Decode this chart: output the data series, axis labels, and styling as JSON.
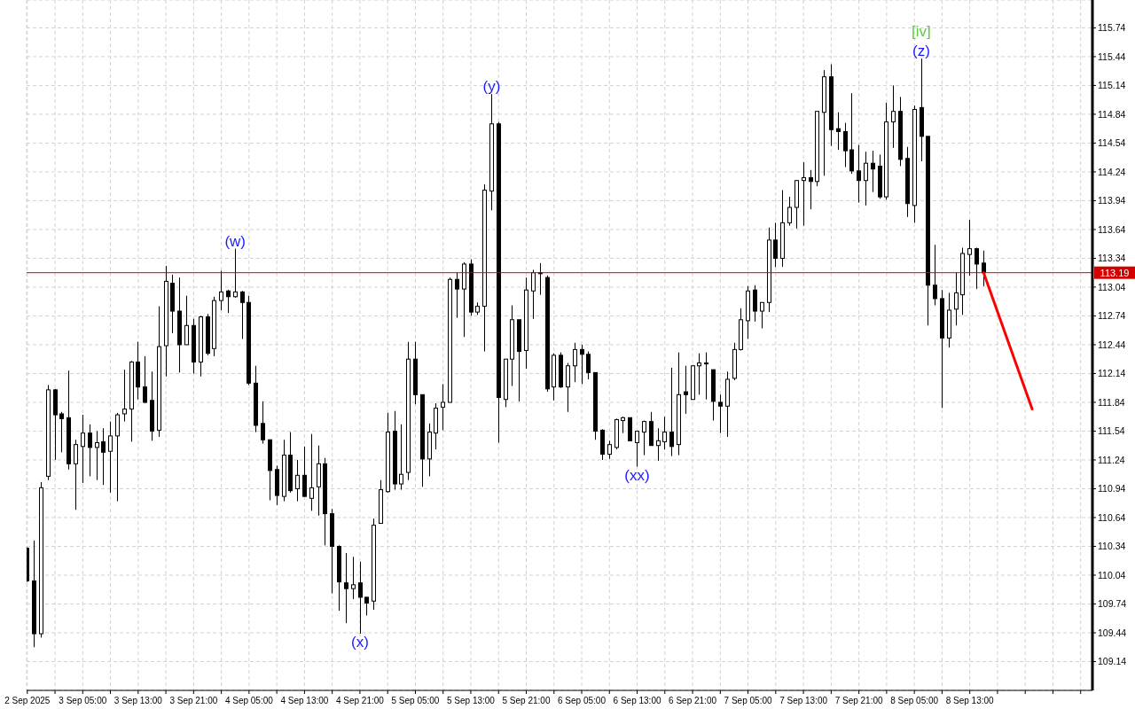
{
  "chart_data": {
    "type": "candlestick",
    "xlim": [
      "2025-09-02T20:54",
      "2025-09-09T06:42"
    ],
    "ylim": [
      108.84,
      116.03
    ],
    "xticks": [
      {
        "value": "2025-09-02T21:00",
        "label": "2 Sep 2025"
      },
      {
        "value": "2025-09-03T01:00",
        "label": null
      },
      {
        "value": "2025-09-03T05:00",
        "label": "3 Sep 05:00"
      },
      {
        "value": "2025-09-03T09:00",
        "label": null
      },
      {
        "value": "2025-09-03T13:00",
        "label": "3 Sep 13:00"
      },
      {
        "value": "2025-09-03T17:00",
        "label": null
      },
      {
        "value": "2025-09-03T21:00",
        "label": "3 Sep 21:00"
      },
      {
        "value": "2025-09-04T01:00",
        "label": null
      },
      {
        "value": "2025-09-04T05:00",
        "label": "4 Sep 05:00"
      },
      {
        "value": "2025-09-04T09:00",
        "label": null
      },
      {
        "value": "2025-09-04T13:00",
        "label": "4 Sep 13:00"
      },
      {
        "value": "2025-09-04T17:00",
        "label": null
      },
      {
        "value": "2025-09-04T21:00",
        "label": "4 Sep 21:00"
      },
      {
        "value": "2025-09-05T01:00",
        "label": null
      },
      {
        "value": "2025-09-05T05:00",
        "label": "5 Sep 05:00"
      },
      {
        "value": "2025-09-05T09:00",
        "label": null
      },
      {
        "value": "2025-09-05T13:00",
        "label": "5 Sep 13:00"
      },
      {
        "value": "2025-09-05T17:00",
        "label": null
      },
      {
        "value": "2025-09-05T21:00",
        "label": "5 Sep 21:00"
      },
      {
        "value": "2025-09-06T01:00",
        "label": null
      },
      {
        "value": "2025-09-06T05:00",
        "label": "6 Sep 05:00"
      },
      {
        "value": "2025-09-06T09:00",
        "label": null
      },
      {
        "value": "2025-09-06T13:00",
        "label": "6 Sep 13:00"
      },
      {
        "value": "2025-09-06T17:00",
        "label": null
      },
      {
        "value": "2025-09-06T21:00",
        "label": "6 Sep 21:00"
      },
      {
        "value": "2025-09-07T01:00",
        "label": null
      },
      {
        "value": "2025-09-07T05:00",
        "label": "7 Sep 05:00"
      },
      {
        "value": "2025-09-07T09:00",
        "label": null
      },
      {
        "value": "2025-09-07T13:00",
        "label": "7 Sep 13:00"
      },
      {
        "value": "2025-09-07T17:00",
        "label": null
      },
      {
        "value": "2025-09-07T21:00",
        "label": "7 Sep 21:00"
      },
      {
        "value": "2025-09-08T01:00",
        "label": null
      },
      {
        "value": "2025-09-08T05:00",
        "label": "8 Sep 05:00"
      },
      {
        "value": "2025-09-08T09:00",
        "label": null
      },
      {
        "value": "2025-09-08T13:00",
        "label": "8 Sep 13:00"
      },
      {
        "value": "2025-09-08T17:00",
        "label": null
      },
      {
        "value": "2025-09-08T21:00",
        "label": null
      },
      {
        "value": "2025-09-09T01:00",
        "label": null
      },
      {
        "value": "2025-09-09T05:00",
        "label": null
      }
    ],
    "yticks": [
      109.14,
      109.44,
      109.74,
      110.04,
      110.34,
      110.64,
      110.94,
      111.24,
      111.54,
      111.84,
      112.14,
      112.44,
      112.74,
      113.04,
      113.34,
      113.64,
      113.94,
      114.24,
      114.54,
      114.84,
      115.14,
      115.44,
      115.74
    ],
    "grid": true,
    "ref_lines": [
      {
        "axis": "y",
        "value": 113.19,
        "label": "113.19",
        "color": "#d40000"
      }
    ],
    "annotations": [
      {
        "text": "(w)",
        "x": "2025-09-04T03:00",
        "y": 113.44
      },
      {
        "text": "(x)",
        "x": "2025-09-04T21:00",
        "y": 109.43
      },
      {
        "text": "(y)",
        "x": "2025-09-05T16:00",
        "y": 115.05
      },
      {
        "text": "(xx)",
        "x": "2025-09-06T13:00",
        "y": 111.17
      },
      {
        "text": "(z)",
        "x": "2025-09-08T06:00",
        "y": 115.42
      },
      {
        "text": "[iv]",
        "x": "2025-09-08T06:00",
        "y": 115.42
      }
    ],
    "series": [
      {
        "color": "#000000",
        "x": [
          "2025-09-02T21:00",
          "2025-09-02T22:00",
          "2025-09-02T23:00",
          "2025-09-03T00:00",
          "2025-09-03T01:00",
          "2025-09-03T02:00",
          "2025-09-03T03:00",
          "2025-09-03T04:00",
          "2025-09-03T05:00",
          "2025-09-03T06:00",
          "2025-09-03T07:00",
          "2025-09-03T08:00",
          "2025-09-03T09:00",
          "2025-09-03T10:00",
          "2025-09-03T11:00",
          "2025-09-03T12:00",
          "2025-09-03T13:00",
          "2025-09-03T14:00",
          "2025-09-03T15:00",
          "2025-09-03T16:00",
          "2025-09-03T17:00",
          "2025-09-03T18:00",
          "2025-09-03T19:00",
          "2025-09-03T20:00",
          "2025-09-03T21:00",
          "2025-09-03T22:00",
          "2025-09-03T23:00",
          "2025-09-04T00:00",
          "2025-09-04T01:00",
          "2025-09-04T02:00",
          "2025-09-04T03:00",
          "2025-09-04T04:00",
          "2025-09-04T05:00",
          "2025-09-04T06:00",
          "2025-09-04T07:00",
          "2025-09-04T08:00",
          "2025-09-04T09:00",
          "2025-09-04T10:00",
          "2025-09-04T11:00",
          "2025-09-04T12:00",
          "2025-09-04T13:00",
          "2025-09-04T14:00",
          "2025-09-04T15:00",
          "2025-09-04T16:00",
          "2025-09-04T17:00",
          "2025-09-04T18:00",
          "2025-09-04T19:00",
          "2025-09-04T20:00",
          "2025-09-04T21:00",
          "2025-09-04T22:00",
          "2025-09-04T23:00",
          "2025-09-05T00:00",
          "2025-09-05T01:00",
          "2025-09-05T02:00",
          "2025-09-05T03:00",
          "2025-09-05T04:00",
          "2025-09-05T05:00",
          "2025-09-05T06:00",
          "2025-09-05T07:00",
          "2025-09-05T08:00",
          "2025-09-05T09:00",
          "2025-09-05T10:00",
          "2025-09-05T11:00",
          "2025-09-05T12:00",
          "2025-09-05T13:00",
          "2025-09-05T14:00",
          "2025-09-05T15:00",
          "2025-09-05T16:00",
          "2025-09-05T17:00",
          "2025-09-05T18:00",
          "2025-09-05T19:00",
          "2025-09-05T20:00",
          "2025-09-05T21:00",
          "2025-09-05T22:00",
          "2025-09-05T23:00",
          "2025-09-06T00:00",
          "2025-09-06T01:00",
          "2025-09-06T02:00",
          "2025-09-06T03:00",
          "2025-09-06T04:00",
          "2025-09-06T05:00",
          "2025-09-06T06:00",
          "2025-09-06T07:00",
          "2025-09-06T08:00",
          "2025-09-06T09:00",
          "2025-09-06T10:00",
          "2025-09-06T11:00",
          "2025-09-06T12:00",
          "2025-09-06T13:00",
          "2025-09-06T14:00",
          "2025-09-06T15:00",
          "2025-09-06T16:00",
          "2025-09-06T17:00",
          "2025-09-06T18:00",
          "2025-09-06T19:00",
          "2025-09-06T20:00",
          "2025-09-06T21:00",
          "2025-09-06T22:00",
          "2025-09-06T23:00",
          "2025-09-07T00:00",
          "2025-09-07T01:00",
          "2025-09-07T02:00",
          "2025-09-07T03:00",
          "2025-09-07T04:00",
          "2025-09-07T05:00",
          "2025-09-07T06:00",
          "2025-09-07T07:00",
          "2025-09-07T08:00",
          "2025-09-07T09:00",
          "2025-09-07T10:00",
          "2025-09-07T11:00",
          "2025-09-07T12:00",
          "2025-09-07T13:00",
          "2025-09-07T14:00",
          "2025-09-07T15:00",
          "2025-09-07T16:00",
          "2025-09-07T17:00",
          "2025-09-07T18:00",
          "2025-09-07T19:00",
          "2025-09-07T20:00",
          "2025-09-07T21:00",
          "2025-09-07T22:00",
          "2025-09-07T23:00",
          "2025-09-08T00:00",
          "2025-09-08T01:00",
          "2025-09-08T02:00",
          "2025-09-08T03:00",
          "2025-09-08T04:00",
          "2025-09-08T05:00",
          "2025-09-08T06:00",
          "2025-09-08T07:00",
          "2025-09-08T08:00",
          "2025-09-08T09:00",
          "2025-09-08T10:00",
          "2025-09-08T11:00",
          "2025-09-08T12:00",
          "2025-09-08T13:00",
          "2025-09-08T14:00",
          "2025-09-08T15:00"
        ],
        "ohlc": [
          [
            110.32,
            110.33,
            109.97,
            109.98
          ],
          [
            109.98,
            110.4,
            109.29,
            109.43
          ],
          [
            109.43,
            111.01,
            109.39,
            110.95
          ],
          [
            111.07,
            112.02,
            111.03,
            111.97
          ],
          [
            111.97,
            111.98,
            111.24,
            111.71
          ],
          [
            111.72,
            111.74,
            111.32,
            111.67
          ],
          [
            111.68,
            112.17,
            111.14,
            111.2
          ],
          [
            111.2,
            111.45,
            110.72,
            111.4
          ],
          [
            111.38,
            111.71,
            111.0,
            111.52
          ],
          [
            111.52,
            111.61,
            111.07,
            111.37
          ],
          [
            111.37,
            111.54,
            111.03,
            111.42
          ],
          [
            111.43,
            111.57,
            110.98,
            111.32
          ],
          [
            111.33,
            111.64,
            110.9,
            111.49
          ],
          [
            111.49,
            111.73,
            110.81,
            111.71
          ],
          [
            111.72,
            112.18,
            111.64,
            111.77
          ],
          [
            111.77,
            112.27,
            111.43,
            112.26
          ],
          [
            112.26,
            112.47,
            111.87,
            112.0
          ],
          [
            112.0,
            112.32,
            111.83,
            111.84
          ],
          [
            111.86,
            112.16,
            111.44,
            111.54
          ],
          [
            111.55,
            112.84,
            111.48,
            112.42
          ],
          [
            112.43,
            113.26,
            112.11,
            113.1
          ],
          [
            113.08,
            113.17,
            112.56,
            112.79
          ],
          [
            112.79,
            113.14,
            112.15,
            112.44
          ],
          [
            112.44,
            112.95,
            112.44,
            112.64
          ],
          [
            112.64,
            112.71,
            112.14,
            112.26
          ],
          [
            112.26,
            112.74,
            112.11,
            112.73
          ],
          [
            112.73,
            112.76,
            112.33,
            112.35
          ],
          [
            112.4,
            112.94,
            112.32,
            112.9
          ],
          [
            112.9,
            113.21,
            112.8,
            112.99
          ],
          [
            113.0,
            113.01,
            112.77,
            112.94
          ],
          [
            112.94,
            113.44,
            112.93,
            112.99
          ],
          [
            112.99,
            113.0,
            112.5,
            112.88
          ],
          [
            112.88,
            112.95,
            112.02,
            112.04
          ],
          [
            112.04,
            112.22,
            111.53,
            111.6
          ],
          [
            111.62,
            111.85,
            111.41,
            111.45
          ],
          [
            111.45,
            111.45,
            110.82,
            111.13
          ],
          [
            111.14,
            111.18,
            110.77,
            110.87
          ],
          [
            110.86,
            111.45,
            110.81,
            111.29
          ],
          [
            111.29,
            111.53,
            110.9,
            110.92
          ],
          [
            110.94,
            111.24,
            110.81,
            111.08
          ],
          [
            111.08,
            111.38,
            110.86,
            110.86
          ],
          [
            110.84,
            111.51,
            110.71,
            110.95
          ],
          [
            110.96,
            111.39,
            110.66,
            111.2
          ],
          [
            111.2,
            111.26,
            110.35,
            110.68
          ],
          [
            110.68,
            110.73,
            109.85,
            110.34
          ],
          [
            110.34,
            110.35,
            109.67,
            109.97
          ],
          [
            109.96,
            110.27,
            109.54,
            109.9
          ],
          [
            109.9,
            110.23,
            109.79,
            109.94
          ],
          [
            109.96,
            110.18,
            109.43,
            109.81
          ],
          [
            109.81,
            109.81,
            109.62,
            109.75
          ],
          [
            109.77,
            110.63,
            109.68,
            110.56
          ],
          [
            110.58,
            111.03,
            110.58,
            110.93
          ],
          [
            110.91,
            111.73,
            110.9,
            111.53
          ],
          [
            111.54,
            111.75,
            110.93,
            110.99
          ],
          [
            110.99,
            111.61,
            110.93,
            111.09
          ],
          [
            111.11,
            112.47,
            111.03,
            112.29
          ],
          [
            112.29,
            112.47,
            111.82,
            111.92
          ],
          [
            111.92,
            111.92,
            110.96,
            111.25
          ],
          [
            111.25,
            111.62,
            111.07,
            111.53
          ],
          [
            111.52,
            111.83,
            111.35,
            111.78
          ],
          [
            111.79,
            112.03,
            111.55,
            111.84
          ],
          [
            111.84,
            113.14,
            111.84,
            113.12
          ],
          [
            113.12,
            113.19,
            112.72,
            113.02
          ],
          [
            113.02,
            113.3,
            112.52,
            113.28
          ],
          [
            113.28,
            113.33,
            112.74,
            112.78
          ],
          [
            112.78,
            112.88,
            112.75,
            112.84
          ],
          [
            112.84,
            114.11,
            112.37,
            114.05
          ],
          [
            114.04,
            115.05,
            113.84,
            114.74
          ],
          [
            114.74,
            114.76,
            111.42,
            111.89
          ],
          [
            111.87,
            112.29,
            111.79,
            112.29
          ],
          [
            112.29,
            112.85,
            112.01,
            112.7
          ],
          [
            112.7,
            112.7,
            111.85,
            112.37
          ],
          [
            112.38,
            113.14,
            112.19,
            113.01
          ],
          [
            113.0,
            113.22,
            112.71,
            113.19
          ],
          [
            113.19,
            113.29,
            112.96,
            113.18
          ],
          [
            113.14,
            113.16,
            111.95,
            111.98
          ],
          [
            112.0,
            112.35,
            111.86,
            112.33
          ],
          [
            112.33,
            112.36,
            111.99,
            112.0
          ],
          [
            112.0,
            112.25,
            111.74,
            112.22
          ],
          [
            112.22,
            112.46,
            112.05,
            112.39
          ],
          [
            112.39,
            112.44,
            112.03,
            112.34
          ],
          [
            112.34,
            112.37,
            112.08,
            112.15
          ],
          [
            112.15,
            112.15,
            111.45,
            111.54
          ],
          [
            111.55,
            111.56,
            111.24,
            111.3
          ],
          [
            111.3,
            111.44,
            111.25,
            111.4
          ],
          [
            111.37,
            111.67,
            111.35,
            111.66
          ],
          [
            111.65,
            111.69,
            111.52,
            111.68
          ],
          [
            111.68,
            111.68,
            111.44,
            111.44
          ],
          [
            111.42,
            111.54,
            111.17,
            111.54
          ],
          [
            111.53,
            111.65,
            111.29,
            111.64
          ],
          [
            111.64,
            111.74,
            111.39,
            111.39
          ],
          [
            111.39,
            111.57,
            111.23,
            111.44
          ],
          [
            111.43,
            111.69,
            111.35,
            111.53
          ],
          [
            111.53,
            112.2,
            111.28,
            111.38
          ],
          [
            111.4,
            112.36,
            111.29,
            111.92
          ],
          [
            111.95,
            112.22,
            111.72,
            111.92
          ],
          [
            111.87,
            112.23,
            111.87,
            112.22
          ],
          [
            112.22,
            112.35,
            111.92,
            112.25
          ],
          [
            112.25,
            112.36,
            111.87,
            112.24
          ],
          [
            112.18,
            112.18,
            111.65,
            111.85
          ],
          [
            111.84,
            111.92,
            111.52,
            111.8
          ],
          [
            111.8,
            112.16,
            111.48,
            112.08
          ],
          [
            112.09,
            112.46,
            112.07,
            112.39
          ],
          [
            112.39,
            112.82,
            112.38,
            112.7
          ],
          [
            112.69,
            113.05,
            112.5,
            113.0
          ],
          [
            113.01,
            113.06,
            112.68,
            112.79
          ],
          [
            112.79,
            112.88,
            112.61,
            112.88
          ],
          [
            112.88,
            113.66,
            112.78,
            113.53
          ],
          [
            113.53,
            113.71,
            113.25,
            113.34
          ],
          [
            113.34,
            114.05,
            113.25,
            113.71
          ],
          [
            113.71,
            113.98,
            113.68,
            113.87
          ],
          [
            113.87,
            114.15,
            113.65,
            114.15
          ],
          [
            114.15,
            114.34,
            113.68,
            114.18
          ],
          [
            114.18,
            114.26,
            113.85,
            114.14
          ],
          [
            114.14,
            114.87,
            114.09,
            114.87
          ],
          [
            114.86,
            115.3,
            114.2,
            115.23
          ],
          [
            115.23,
            115.36,
            114.51,
            114.68
          ],
          [
            114.69,
            114.86,
            114.47,
            114.66
          ],
          [
            114.66,
            114.75,
            114.29,
            114.46
          ],
          [
            114.47,
            115.06,
            114.22,
            114.25
          ],
          [
            114.25,
            114.52,
            113.92,
            114.15
          ],
          [
            114.15,
            114.45,
            113.89,
            114.33
          ],
          [
            114.33,
            114.46,
            114.03,
            114.27
          ],
          [
            114.3,
            114.42,
            113.96,
            113.98
          ],
          [
            113.98,
            114.96,
            113.95,
            114.76
          ],
          [
            114.76,
            115.14,
            114.49,
            114.87
          ],
          [
            114.87,
            115.02,
            114.3,
            114.37
          ],
          [
            114.38,
            114.5,
            113.77,
            113.91
          ],
          [
            113.89,
            114.93,
            113.71,
            114.89
          ],
          [
            114.91,
            115.42,
            114.35,
            114.61
          ],
          [
            114.61,
            114.61,
            112.64,
            113.06
          ],
          [
            113.06,
            113.48,
            112.85,
            112.92
          ],
          [
            112.92,
            113.01,
            111.78,
            112.51
          ],
          [
            112.51,
            112.98,
            112.41,
            112.8
          ],
          [
            112.81,
            113.19,
            112.64,
            112.98
          ],
          [
            112.96,
            113.45,
            112.75,
            113.39
          ],
          [
            113.38,
            113.74,
            113.16,
            113.44
          ],
          [
            113.44,
            113.45,
            113.02,
            113.28
          ],
          [
            113.29,
            113.42,
            113.05,
            113.19
          ]
        ]
      },
      {
        "type": "line",
        "color": "#ff0000",
        "x": [
          "2025-09-08T15:00",
          "2025-09-08T22:00"
        ],
        "values": [
          113.19,
          111.77
        ]
      }
    ]
  }
}
